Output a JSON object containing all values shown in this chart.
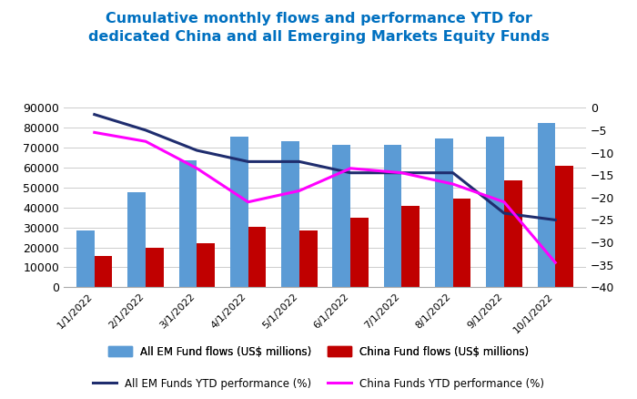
{
  "title_line1": "Cumulative monthly flows and performance YTD for",
  "title_line2": "dedicated China and all Emerging Markets Equity Funds",
  "title_color": "#0070C0",
  "x_labels": [
    "1/1/2022",
    "2/1/2022",
    "3/1/2022",
    "4/1/2022",
    "5/1/2022",
    "6/1/2022",
    "7/1/2022",
    "8/1/2022",
    "9/1/2022",
    "10/1/2022"
  ],
  "em_flows": [
    28500,
    47500,
    63500,
    75500,
    73000,
    71500,
    71500,
    74500,
    75500,
    82500
  ],
  "china_flows": [
    15500,
    20000,
    22000,
    30500,
    28500,
    35000,
    41000,
    44500,
    53500,
    61000
  ],
  "em_ytd": [
    -1.5,
    -5.0,
    -9.5,
    -12.0,
    -12.0,
    -14.5,
    -14.5,
    -14.5,
    -23.5,
    -25.0
  ],
  "china_ytd": [
    -5.5,
    -7.5,
    -13.5,
    -21.0,
    -18.5,
    -13.5,
    -14.5,
    -17.0,
    -21.0,
    -34.5
  ],
  "em_bar_color": "#5B9BD5",
  "china_bar_color": "#C00000",
  "em_line_color": "#1F2D6E",
  "china_line_color": "#FF00FF",
  "left_ylim": [
    0,
    90000
  ],
  "left_yticks": [
    0,
    10000,
    20000,
    30000,
    40000,
    50000,
    60000,
    70000,
    80000,
    90000
  ],
  "right_ylim": [
    -40,
    0
  ],
  "right_yticks": [
    -40,
    -35,
    -30,
    -25,
    -20,
    -15,
    -10,
    -5,
    0
  ],
  "bar_width": 0.35,
  "background_color": "#FFFFFF",
  "legend_em_flows": "All EM Fund flows (US$ millions)",
  "legend_china_flows": "China Fund flows (US$ millions)",
  "legend_em_ytd": "All EM Funds YTD performance (%)",
  "legend_china_ytd": "China Funds YTD performance (%)"
}
